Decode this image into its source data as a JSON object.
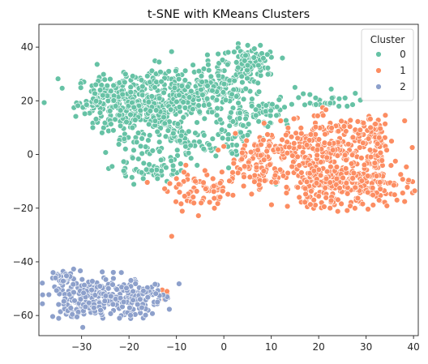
{
  "chart_data": {
    "type": "scatter",
    "title": "t-SNE with KMeans Clusters",
    "xlabel": "",
    "ylabel": "",
    "xlim": [
      -39,
      41
    ],
    "ylim": [
      -67.5,
      48.5
    ],
    "xticks": [
      -30,
      -20,
      -10,
      0,
      10,
      20,
      30,
      40
    ],
    "yticks": [
      -60,
      -40,
      -20,
      0,
      20,
      40
    ],
    "grid": false,
    "legend": {
      "title": "Cluster",
      "placement": "top-right",
      "entries": [
        "0",
        "1",
        "2"
      ]
    },
    "colors": [
      "#66c2a5",
      "#fc8d62",
      "#8da0cb"
    ],
    "series": [
      {
        "name": "0",
        "regions": [
          {
            "cx": -20,
            "cy": 20,
            "sx": 5.5,
            "sy": 5,
            "n": 330
          },
          {
            "cx": -9,
            "cy": 22,
            "sx": 5,
            "sy": 5.5,
            "n": 160
          },
          {
            "cx": -16,
            "cy": 7,
            "sx": 4,
            "sy": 5,
            "n": 80
          },
          {
            "cx": -15,
            "cy": -6,
            "sx": 4,
            "sy": 2,
            "n": 45
          },
          {
            "cx": -8,
            "cy": 3,
            "sx": 3,
            "sy": 3,
            "n": 45
          },
          {
            "cx": 0,
            "cy": 24,
            "sx": 3.5,
            "sy": 5,
            "n": 110
          },
          {
            "cx": 6,
            "cy": 35,
            "sx": 3,
            "sy": 3.2,
            "n": 85
          },
          {
            "cx": 2,
            "cy": 8,
            "sx": 2,
            "sy": 4,
            "n": 40
          },
          {
            "cx": 8,
            "cy": 16,
            "sx": 3,
            "sy": 3,
            "n": 50
          },
          {
            "cx": 21,
            "cy": 20,
            "sx": 5,
            "sy": 1.6,
            "n": 32
          },
          {
            "cx": -27,
            "cy": 21,
            "sx": 0.8,
            "sy": 1.2,
            "n": 14
          }
        ],
        "points": [
          [
            -17,
            -9
          ],
          [
            -14,
            -9
          ],
          [
            -12,
            -10
          ],
          [
            -9,
            -6
          ],
          [
            1,
            -5
          ],
          [
            11,
            -11
          ],
          [
            15,
            25
          ],
          [
            26,
            18
          ],
          [
            -27,
            26
          ],
          [
            -6,
            8
          ]
        ]
      },
      {
        "name": "1",
        "regions": [
          {
            "cx": 22,
            "cy": 3,
            "sx": 6.5,
            "sy": 5.5,
            "n": 250
          },
          {
            "cx": 25,
            "cy": -11,
            "sx": 7,
            "sy": 4.5,
            "n": 310
          },
          {
            "cx": 8,
            "cy": 1,
            "sx": 3,
            "sy": 2.5,
            "n": 55
          },
          {
            "cx": 7,
            "cy": -7,
            "sx": 3,
            "sy": 3,
            "n": 40
          },
          {
            "cx": -4,
            "cy": -14,
            "sx": 4,
            "sy": 3,
            "n": 70
          },
          {
            "cx": 32,
            "cy": 4,
            "sx": 2,
            "sy": 5,
            "n": 40
          }
        ],
        "points": [
          [
            -11,
            -30.5
          ],
          [
            -2,
            -20
          ],
          [
            -12,
            -52
          ],
          [
            -12.5,
            -54
          ],
          [
            -13,
            -50.5
          ],
          [
            -12,
            -51
          ],
          [
            -8,
            -4
          ],
          [
            -6,
            -10
          ],
          [
            -10,
            -9
          ],
          [
            -4,
            -6
          ],
          [
            36,
            -15
          ],
          [
            36.5,
            -17
          ],
          [
            0,
            3
          ]
        ]
      },
      {
        "name": "2",
        "regions": [
          {
            "cx": -30,
            "cy": -53,
            "sx": 3.5,
            "sy": 4,
            "n": 160
          },
          {
            "cx": -21,
            "cy": -53,
            "sx": 3.5,
            "sy": 4,
            "n": 150
          },
          {
            "cx": -34,
            "cy": -46,
            "sx": 1.2,
            "sy": 1.2,
            "n": 22
          },
          {
            "cx": -16,
            "cy": -53,
            "sx": 1.5,
            "sy": 2.5,
            "n": 22
          }
        ],
        "points": [
          [
            -36,
            -44
          ],
          [
            -35.5,
            -46
          ],
          [
            -22,
            -61
          ],
          [
            -26,
            -58
          ],
          [
            -14,
            -55
          ]
        ]
      }
    ]
  }
}
